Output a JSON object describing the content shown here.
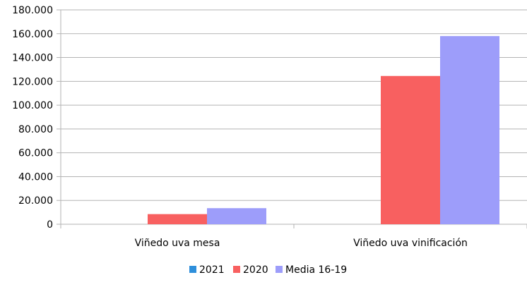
{
  "chart_data": {
    "type": "bar",
    "title": "",
    "xlabel": "",
    "ylabel": "",
    "categories": [
      "Viñedo uva mesa",
      "Viñedo uva vinificación"
    ],
    "series": [
      {
        "name": "2021",
        "color": "#2e8fdb",
        "values": [
          0,
          0
        ]
      },
      {
        "name": "2020",
        "color": "#f86060",
        "values": [
          8500,
          124500
        ]
      },
      {
        "name": "Media  16-19",
        "color": "#9d9dfa",
        "values": [
          13500,
          158000
        ]
      }
    ],
    "ylim": [
      0,
      180000
    ],
    "yticks": [
      "0",
      "20.000",
      "40.000",
      "60.000",
      "80.000",
      "100.000",
      "120.000",
      "140.000",
      "160.000",
      "180.000"
    ],
    "grid": true,
    "legend_position": "bottom"
  }
}
